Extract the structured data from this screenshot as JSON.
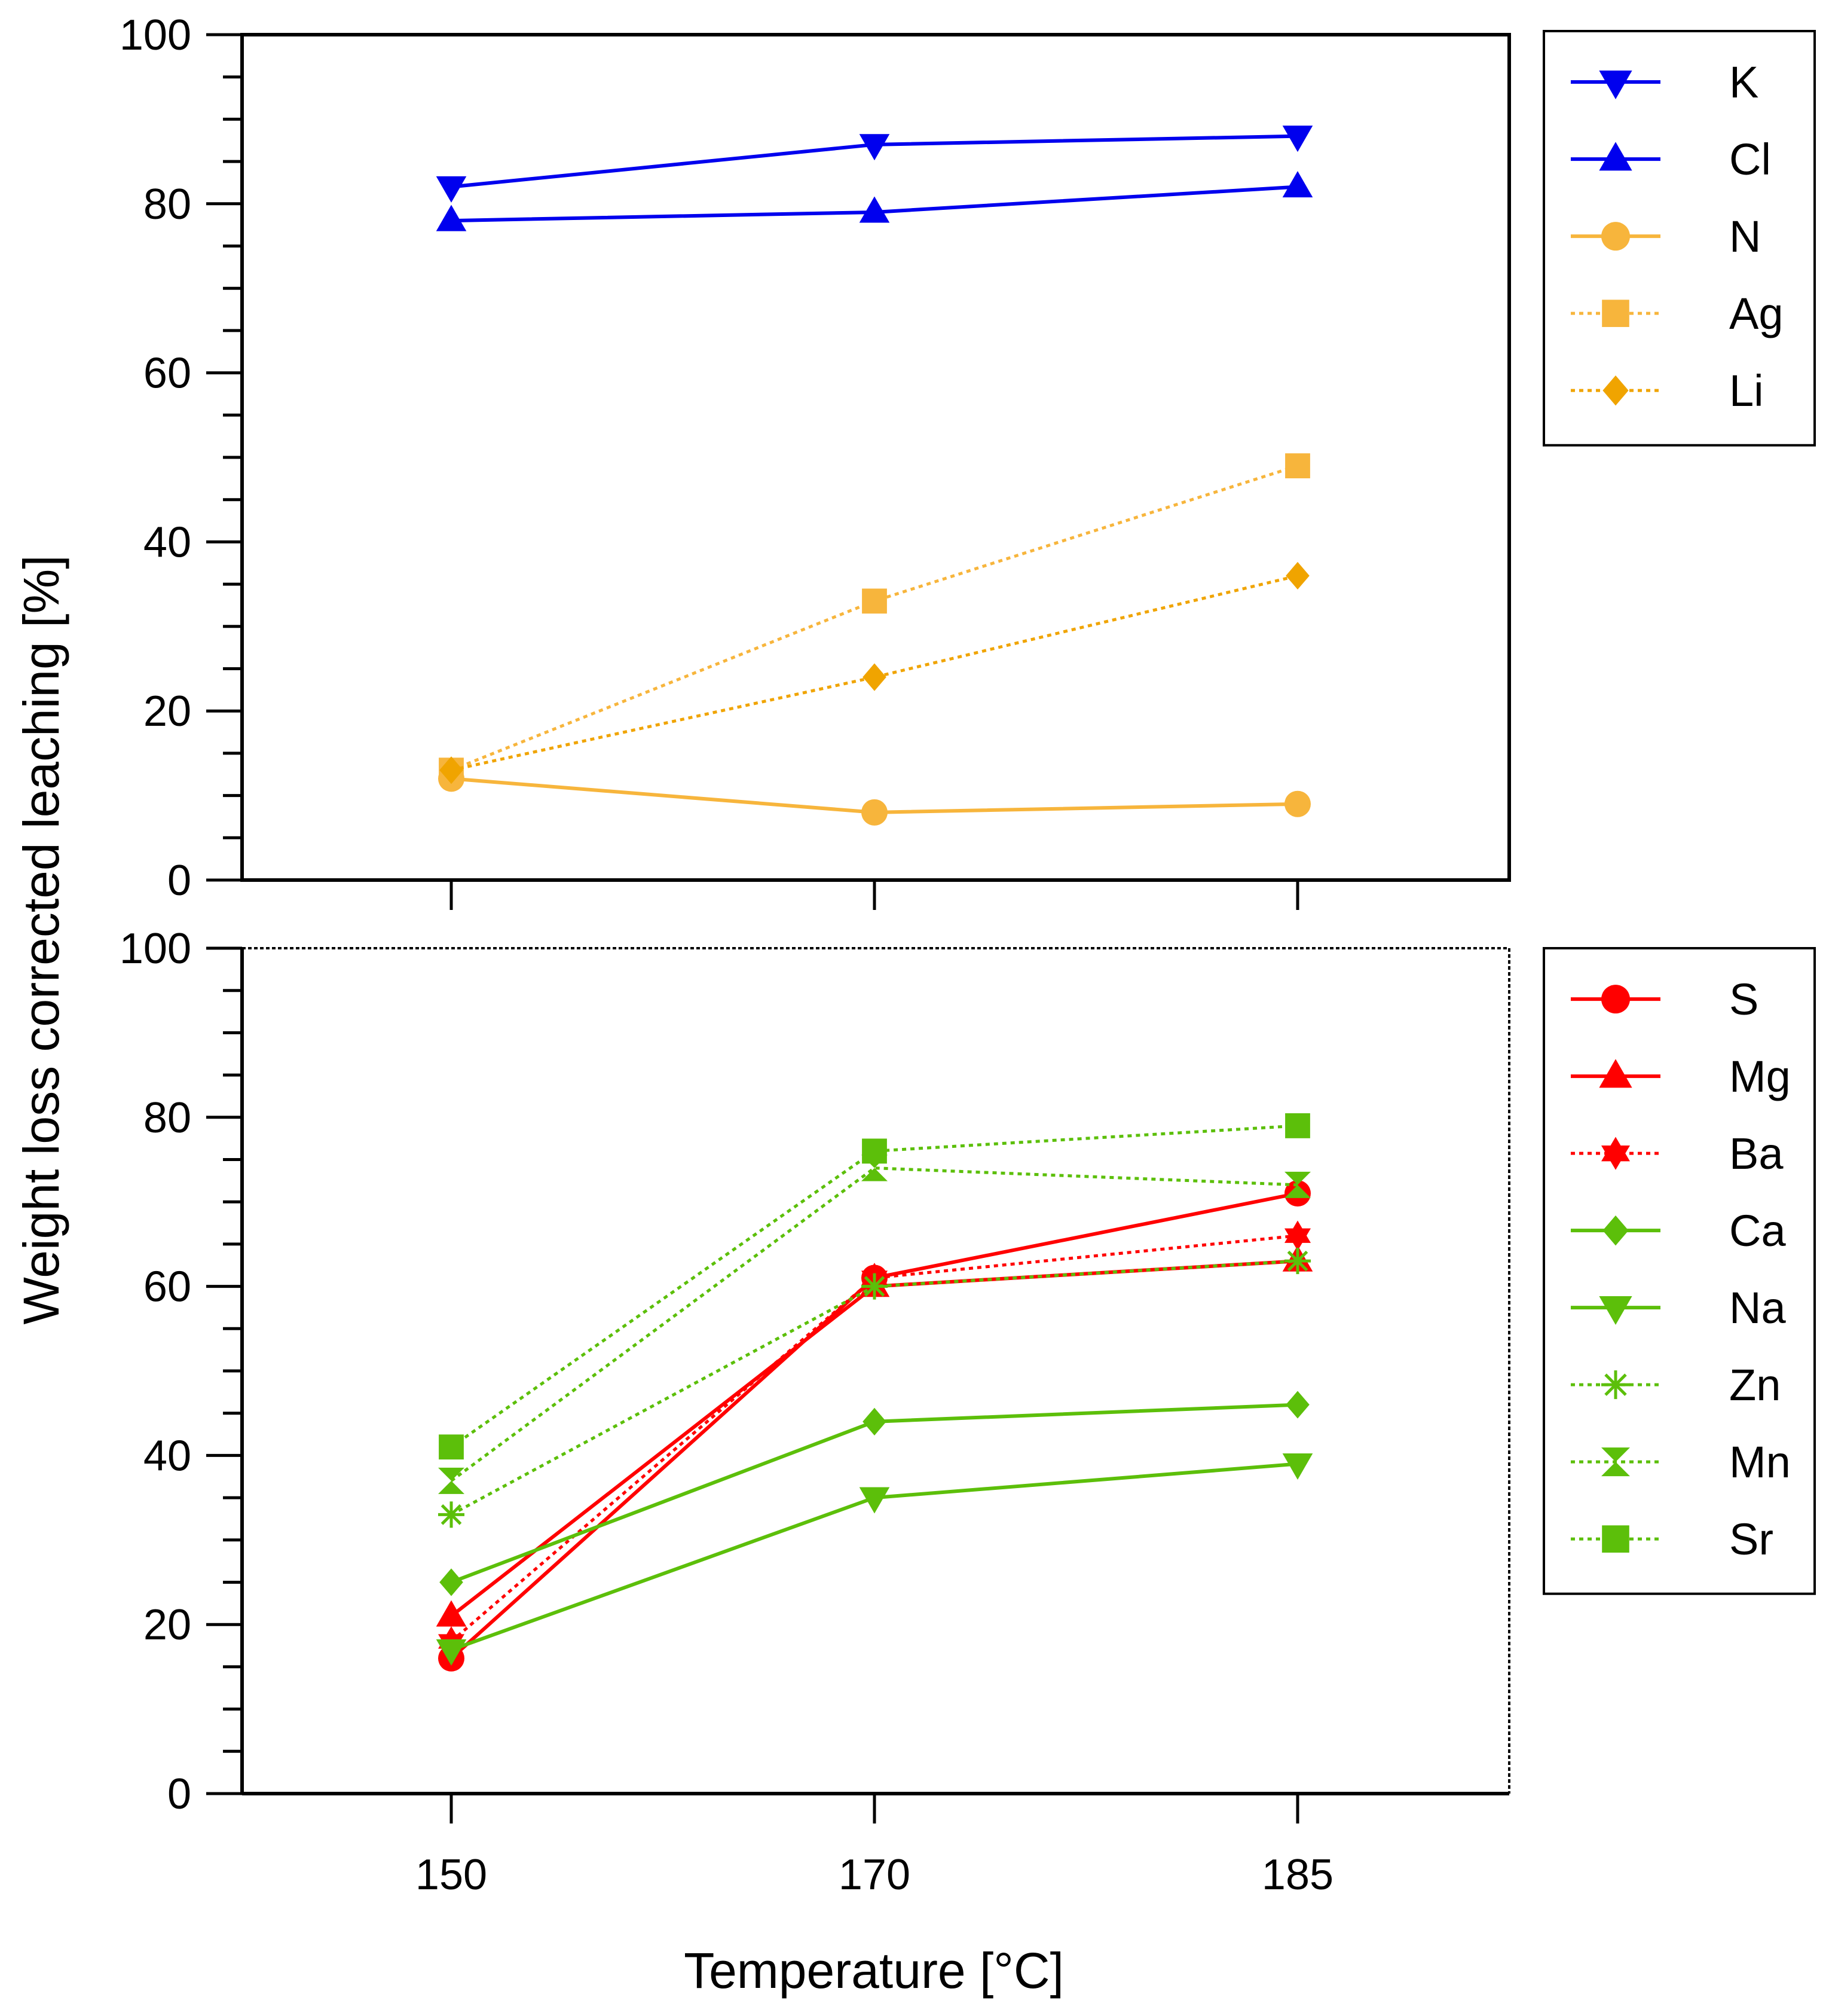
{
  "chart_data": [
    {
      "type": "line",
      "x": [
        150,
        170,
        185
      ],
      "ylim": [
        0,
        100
      ],
      "yticks": [
        0,
        20,
        40,
        60,
        80,
        100
      ],
      "grid": false,
      "legend_position": "right-top",
      "series": [
        {
          "name": "K",
          "values": [
            82,
            87,
            88
          ],
          "color": "#0000ee",
          "marker": "triangle-down",
          "line": "solid"
        },
        {
          "name": "Cl",
          "values": [
            78,
            79,
            82
          ],
          "color": "#0000ee",
          "marker": "triangle-up",
          "line": "solid"
        },
        {
          "name": "N",
          "values": [
            12,
            8,
            9
          ],
          "color": "#f7b53c",
          "marker": "circle",
          "line": "solid"
        },
        {
          "name": "Ag",
          "values": [
            13,
            33,
            49
          ],
          "color": "#f7b53c",
          "marker": "square",
          "line": "dotted"
        },
        {
          "name": "Li",
          "values": [
            13,
            24,
            36
          ],
          "color": "#f0a400",
          "marker": "diamond",
          "line": "dotted"
        }
      ]
    },
    {
      "type": "line",
      "x": [
        150,
        170,
        185
      ],
      "xticks": [
        "150",
        "170",
        "185"
      ],
      "ylim": [
        0,
        100
      ],
      "yticks": [
        0,
        20,
        40,
        60,
        80,
        100
      ],
      "grid": false,
      "legend_position": "right-top",
      "series": [
        {
          "name": "S",
          "values": [
            16,
            61,
            71
          ],
          "color": "#ff0000",
          "marker": "circle",
          "line": "solid"
        },
        {
          "name": "Mg",
          "values": [
            21,
            60,
            63
          ],
          "color": "#ff0000",
          "marker": "triangle-up",
          "line": "solid"
        },
        {
          "name": "Ba",
          "values": [
            18,
            61,
            66
          ],
          "color": "#ff0000",
          "marker": "star",
          "line": "dotted"
        },
        {
          "name": "Ca",
          "values": [
            25,
            44,
            46
          ],
          "color": "#5cbf0a",
          "marker": "diamond",
          "line": "solid"
        },
        {
          "name": "Na",
          "values": [
            17,
            35,
            39
          ],
          "color": "#5cbf0a",
          "marker": "triangle-down",
          "line": "solid"
        },
        {
          "name": "Zn",
          "values": [
            33,
            60,
            63
          ],
          "color": "#5cbf0a",
          "marker": "asterisk",
          "line": "dotted"
        },
        {
          "name": "Mn",
          "values": [
            37,
            74,
            72
          ],
          "color": "#5cbf0a",
          "marker": "hourglass",
          "line": "dotted"
        },
        {
          "name": "Sr",
          "values": [
            41,
            76,
            79
          ],
          "color": "#5cbf0a",
          "marker": "square",
          "line": "dotted"
        }
      ]
    }
  ],
  "ylabel": "Weight loss corrected leaching [%]",
  "xlabel": "Temperature [°C]"
}
